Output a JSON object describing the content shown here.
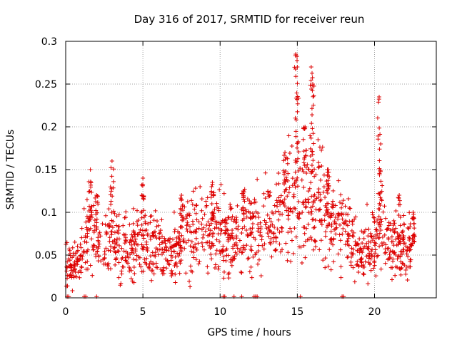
{
  "chart_data": {
    "type": "scatter",
    "title": "Day 316 of 2017, SRMTID for receiver reun",
    "xlabel": "GPS time / hours",
    "ylabel": "SRMTID / TECUs",
    "xlim": [
      0,
      24
    ],
    "ylim": [
      0,
      0.3
    ],
    "xticks": [
      0,
      5,
      10,
      15,
      20
    ],
    "yticks": [
      0,
      0.05,
      0.1,
      0.15,
      0.2,
      0.25,
      0.3
    ],
    "ytick_labels": [
      "0",
      "0.05",
      "0.1",
      "0.15",
      "0.2",
      "0.25",
      "0.3"
    ],
    "grid": true,
    "marker": "+",
    "color": "#dd0000",
    "series": [
      {
        "name": "SRMTID",
        "profile": [
          [
            0.0,
            0.04
          ],
          [
            0.5,
            0.035
          ],
          [
            1.0,
            0.045
          ],
          [
            1.2,
            0.06
          ],
          [
            1.6,
            0.09
          ],
          [
            2.0,
            0.065
          ],
          [
            2.5,
            0.06
          ],
          [
            3.0,
            0.07
          ],
          [
            3.5,
            0.055
          ],
          [
            4.0,
            0.06
          ],
          [
            5.0,
            0.065
          ],
          [
            6.0,
            0.062
          ],
          [
            6.6,
            0.045
          ],
          [
            7.0,
            0.055
          ],
          [
            8.0,
            0.075
          ],
          [
            9.0,
            0.08
          ],
          [
            9.5,
            0.085
          ],
          [
            10.0,
            0.075
          ],
          [
            11.0,
            0.07
          ],
          [
            12.0,
            0.08
          ],
          [
            13.0,
            0.085
          ],
          [
            14.0,
            0.1
          ],
          [
            14.5,
            0.11
          ],
          [
            15.0,
            0.13
          ],
          [
            15.5,
            0.12
          ],
          [
            16.0,
            0.1
          ],
          [
            16.5,
            0.12
          ],
          [
            17.0,
            0.09
          ],
          [
            18.0,
            0.09
          ],
          [
            18.5,
            0.07
          ],
          [
            19.0,
            0.05
          ],
          [
            19.5,
            0.06
          ],
          [
            20.0,
            0.065
          ],
          [
            20.5,
            0.08
          ],
          [
            21.0,
            0.06
          ],
          [
            22.0,
            0.06
          ],
          [
            22.6,
            0.055
          ]
        ],
        "spikes": [
          {
            "x": 1.6,
            "y": 0.15
          },
          {
            "x": 3.0,
            "y": 0.16
          },
          {
            "x": 2.0,
            "y": 0.12
          },
          {
            "x": 5.0,
            "y": 0.14
          },
          {
            "x": 7.5,
            "y": 0.12
          },
          {
            "x": 9.5,
            "y": 0.135
          },
          {
            "x": 11.5,
            "y": 0.125
          },
          {
            "x": 14.2,
            "y": 0.17
          },
          {
            "x": 14.9,
            "y": 0.285
          },
          {
            "x": 15.0,
            "y": 0.27
          },
          {
            "x": 15.5,
            "y": 0.2
          },
          {
            "x": 15.9,
            "y": 0.27
          },
          {
            "x": 16.0,
            "y": 0.25
          },
          {
            "x": 17.0,
            "y": 0.15
          },
          {
            "x": 20.3,
            "y": 0.235
          },
          {
            "x": 20.4,
            "y": 0.18
          },
          {
            "x": 21.6,
            "y": 0.12
          },
          {
            "x": 22.5,
            "y": 0.1
          }
        ],
        "zero_points_x": [
          0.1,
          0.2,
          1.2,
          1.3,
          2.0,
          10.2,
          10.3,
          10.9,
          11.4,
          12.2,
          12.3,
          12.4,
          15.2,
          17.9,
          18.0
        ]
      }
    ]
  }
}
